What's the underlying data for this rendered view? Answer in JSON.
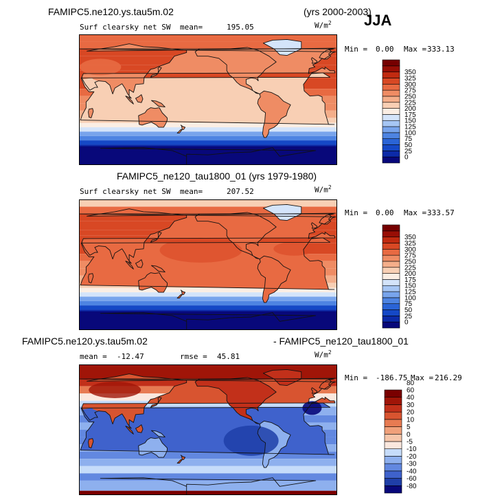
{
  "header": {
    "case_title": "FAMIPC5.ne120.ys.tau5m.02",
    "years": "(yrs 2000-2003)",
    "season": "JJA"
  },
  "palettes": {
    "abs": [
      "#08087a",
      "#0c2aa8",
      "#1548c6",
      "#2a64d6",
      "#4e84e2",
      "#78a4ec",
      "#a6c6f4",
      "#d4e4fa",
      "#fbeee4",
      "#f8cfb4",
      "#f4ae8a",
      "#ef8c64",
      "#e86a42",
      "#d84824",
      "#c02a10",
      "#980e05",
      "#760000"
    ],
    "diff": [
      "#08087a",
      "#1f3fa8",
      "#3f62cc",
      "#6288e0",
      "#8eb0ee",
      "#c6dcfa",
      "#fbe8de",
      "#f6c6aa",
      "#f0a07a",
      "#e77b52",
      "#d85430",
      "#c2301a",
      "#a01508",
      "#7a0000"
    ]
  },
  "chart_data": [
    {
      "type": "heatmap",
      "title": "Surf clearsky net SW",
      "units": "W/m²",
      "units_display": {
        "base": "W/m",
        "sup": "2"
      },
      "mean_label": "mean=",
      "mean": "195.05",
      "min_label": "Min =",
      "min": "0.00",
      "max_label": "Max =",
      "max": "333.13",
      "colorbar_levels": [
        "0",
        "25",
        "50",
        "75",
        "100",
        "125",
        "150",
        "175",
        "200",
        "225",
        "250",
        "275",
        "300",
        "325",
        "350"
      ],
      "palette": "abs"
    },
    {
      "type": "heatmap",
      "case_title": "FAMIPC5_ne120_tau1800_01 (yrs 1979-1980)",
      "title": "Surf clearsky net SW",
      "units": "W/m²",
      "units_display": {
        "base": "W/m",
        "sup": "2"
      },
      "mean_label": "mean=",
      "mean": "207.52",
      "min_label": "Min =",
      "min": "0.00",
      "max_label": "Max =",
      "max": "333.57",
      "colorbar_levels": [
        "0",
        "25",
        "50",
        "75",
        "100",
        "125",
        "150",
        "175",
        "200",
        "225",
        "250",
        "275",
        "300",
        "325",
        "350"
      ],
      "palette": "abs"
    },
    {
      "type": "heatmap",
      "case_title_left": "FAMIPC5.ne120.ys.tau5m.02",
      "case_title_right": "- FAMIPC5_ne120_tau1800_01",
      "units": "W/m²",
      "units_display": {
        "base": "W/m",
        "sup": "2"
      },
      "mean_label": "mean =",
      "mean": "-12.47",
      "rmse_label": "rmse =",
      "rmse": "45.81",
      "min_label": "Min =",
      "min": "-186.75",
      "max_label": "Max =",
      "max": "216.29",
      "colorbar_levels": [
        "-80",
        "-60",
        "-40",
        "-30",
        "-20",
        "-10",
        "-5",
        "0",
        "5",
        "10",
        "20",
        "30",
        "40",
        "60",
        "80"
      ],
      "palette": "diff"
    }
  ]
}
